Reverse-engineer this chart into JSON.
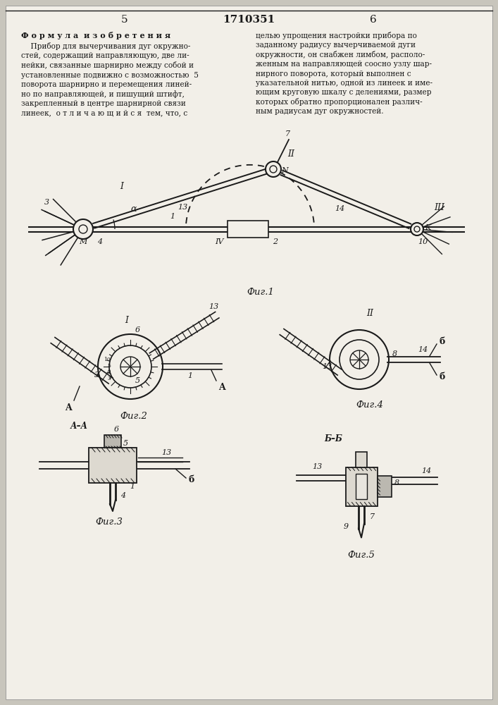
{
  "page_num_left": "5",
  "page_num_center": "1710351",
  "page_num_right": "6",
  "text_left_title": "Ф о р м у л а  и з о б р е т е н и я",
  "text_left_body": "    Прибор для вычерчивания дуг окружно-\nстей, содержащий направляющую, две ли-\nнейки, связанные шарнирно между собой и\nустановленные подвижно с возможностью  5\nповорота шарнирно и перемещения линей-\nно по направляющей, и пишущий штифт,\nзакрепленный в центре шарнирной связи\nлинеек,  о т л и ч а ю щ и й с я  тем, что, с",
  "text_right_body": "целью упрощения настройки прибора по\nзаданному радиусу вычерчиваемой дуги\nокружности, он снабжен лимбом, располо-\nженным на направляющей соосно узлу шар-\nнирного поворота, который выполнен с\nуказательной нитью, одной из линеек и име-\nющим круговую шкалу с делениями, размер\nкоторых обратно пропорционален различ-\nным радиусам дуг окружностей.",
  "bg_color": "#d8d5cc",
  "line_color": "#1a1a1a"
}
